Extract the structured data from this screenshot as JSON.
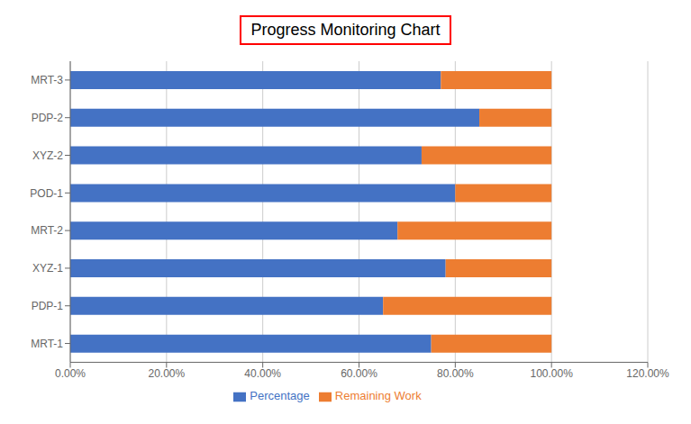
{
  "chart_data": {
    "type": "bar",
    "title": "Progress Monitoring Chart",
    "orientation": "horizontal",
    "stacked": true,
    "categories": [
      "MRT-1",
      "PDP-1",
      "XYZ-1",
      "MRT-2",
      "POD-1",
      "XYZ-2",
      "PDP-2",
      "MRT-3"
    ],
    "series": [
      {
        "name": "Percentage",
        "color": "#4472C4",
        "values": [
          0.75,
          0.65,
          0.78,
          0.68,
          0.8,
          0.73,
          0.85,
          0.77
        ]
      },
      {
        "name": "Remaining Work",
        "color": "#ED7D31",
        "values": [
          0.25,
          0.35,
          0.22,
          0.32,
          0.2,
          0.27,
          0.15,
          0.23
        ]
      }
    ],
    "xlim": [
      0.0,
      1.2
    ],
    "xticks": [
      {
        "value": 0.0,
        "label": "0.00%"
      },
      {
        "value": 0.2,
        "label": "20.00%"
      },
      {
        "value": 0.4,
        "label": "40.00%"
      },
      {
        "value": 0.6,
        "label": "60.00%"
      },
      {
        "value": 0.8,
        "label": "80.00%"
      },
      {
        "value": 1.0,
        "label": "100.00%"
      },
      {
        "value": 1.2,
        "label": "120.00%"
      }
    ],
    "grid": true,
    "legend": "bottom"
  }
}
